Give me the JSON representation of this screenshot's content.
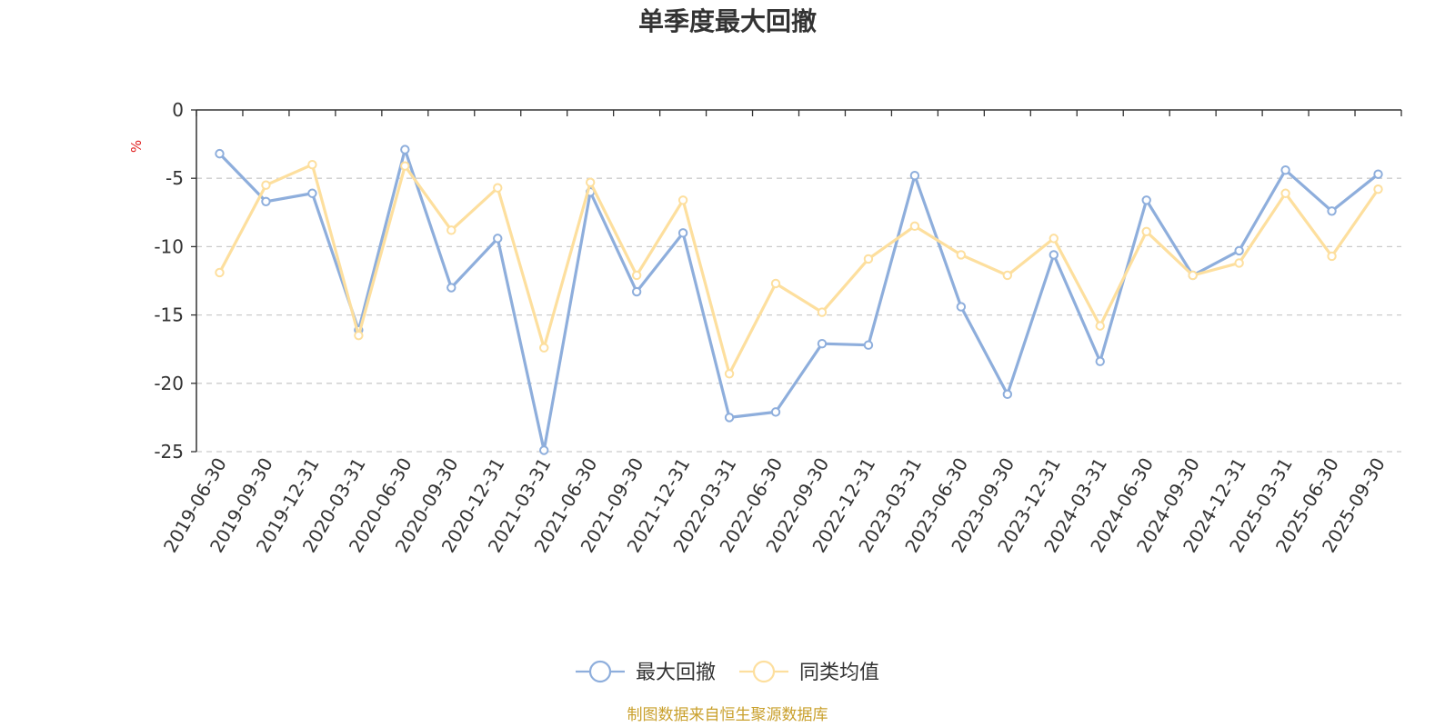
{
  "chart_data": {
    "type": "line",
    "title": "单季度最大回撤",
    "ylabel": "%",
    "xlabel": "",
    "ylim": [
      -25,
      0
    ],
    "yticks": [
      0,
      -5,
      -10,
      -15,
      -20,
      -25
    ],
    "grid": "horizontal dashed",
    "legend_position": "bottom-center",
    "categories": [
      "2019-06-30",
      "2019-09-30",
      "2019-12-31",
      "2020-03-31",
      "2020-06-30",
      "2020-09-30",
      "2020-12-31",
      "2021-03-31",
      "2021-06-30",
      "2021-09-30",
      "2021-12-31",
      "2022-03-31",
      "2022-06-30",
      "2022-09-30",
      "2022-12-31",
      "2023-03-31",
      "2023-06-30",
      "2023-09-30",
      "2023-12-31",
      "2024-03-31",
      "2024-06-30",
      "2024-09-30",
      "2024-12-31",
      "2025-03-31",
      "2025-06-30",
      "2025-09-30"
    ],
    "series": [
      {
        "name": "最大回撤",
        "color": "#8eaedc",
        "values": [
          -3.2,
          -6.7,
          -6.1,
          -16.1,
          -2.9,
          -13.0,
          -9.4,
          -24.9,
          -6.0,
          -13.3,
          -9.0,
          -22.5,
          -22.1,
          -17.1,
          -17.2,
          -4.8,
          -14.4,
          -20.8,
          -10.6,
          -18.4,
          -6.6,
          -12.1,
          -10.3,
          -4.4,
          -7.4,
          -4.7
        ]
      },
      {
        "name": "同类均值",
        "color": "#fddf9e",
        "values": [
          -11.9,
          -5.5,
          -4.0,
          -16.5,
          -4.1,
          -8.8,
          -5.7,
          -17.4,
          -5.3,
          -12.1,
          -6.6,
          -19.3,
          -12.7,
          -14.8,
          -10.9,
          -8.5,
          -10.6,
          -12.1,
          -9.4,
          -15.8,
          -8.9,
          -12.1,
          -11.2,
          -6.1,
          -10.7,
          -5.8
        ]
      }
    ]
  },
  "footer": {
    "source": "制图数据来自恒生聚源数据库"
  }
}
